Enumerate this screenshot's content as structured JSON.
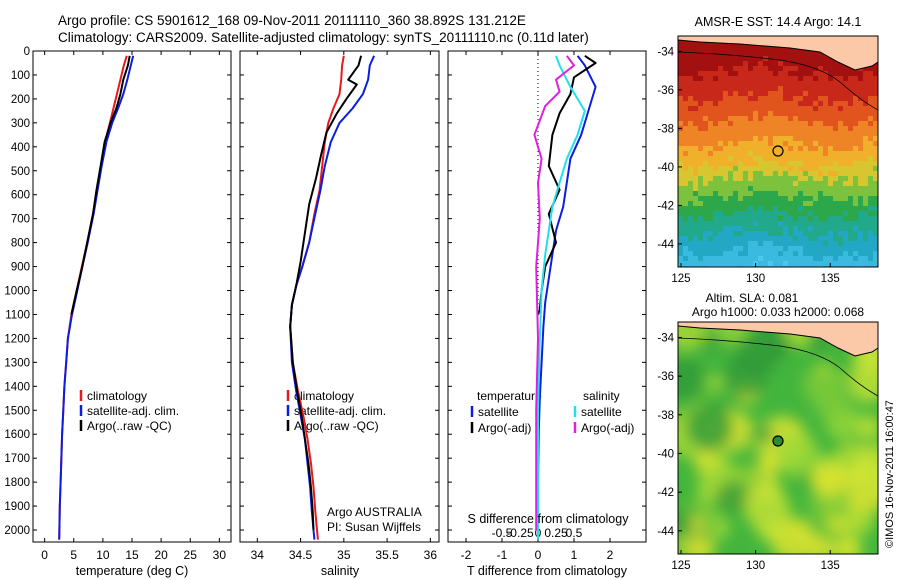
{
  "header": {
    "line1": "Argo profile: CS 5901612_168 09-Nov-2011 20111110_360 38.892S 131.212E",
    "line2": "Climatology: CARS2009. Satellite-adjusted climatology: synTS_20111110.nc (0.11d later)"
  },
  "chart_data": [
    {
      "type": "line",
      "xlabel": "temperature (deg C)",
      "xlim": [
        -2,
        32
      ],
      "xticks": [
        0,
        5,
        10,
        15,
        20,
        25,
        30
      ],
      "ylim": [
        2050,
        0
      ],
      "yticks": [
        0,
        100,
        200,
        300,
        400,
        500,
        600,
        700,
        800,
        900,
        1000,
        1100,
        1200,
        1300,
        1400,
        1500,
        1600,
        1700,
        1800,
        1900,
        2000
      ],
      "legend": [
        "climatology",
        "satellite-adj. clim.",
        "Argo(..raw -QC)"
      ],
      "legend_position": "bottom-right",
      "series": [
        {
          "name": "climatology",
          "color": "#e41a1c",
          "x": [
            14.1,
            13.6,
            13.0,
            12.4,
            11.8,
            11.2,
            10.4,
            9.7,
            9.0,
            8.3,
            7.3,
            6.2,
            5.5,
            4.6,
            4.0,
            3.7,
            3.4,
            3.2,
            3.0,
            2.8,
            2.6,
            2.5
          ],
          "y": [
            20,
            60,
            120,
            180,
            240,
            300,
            380,
            480,
            580,
            680,
            800,
            920,
            1000,
            1100,
            1200,
            1300,
            1400,
            1500,
            1600,
            1750,
            1900,
            2040
          ]
        },
        {
          "name": "satellite-adj. clim.",
          "color": "#0b1ee0",
          "x": [
            15.2,
            14.8,
            14.2,
            13.5,
            12.6,
            11.6,
            10.6,
            9.8,
            9.1,
            8.4,
            7.4,
            6.3,
            5.6,
            4.7,
            4.0,
            3.7,
            3.4,
            3.2,
            3.0,
            2.8,
            2.6,
            2.5
          ],
          "y": [
            20,
            60,
            120,
            180,
            240,
            300,
            380,
            480,
            580,
            680,
            800,
            920,
            1000,
            1100,
            1200,
            1300,
            1400,
            1500,
            1600,
            1750,
            1900,
            2040
          ]
        },
        {
          "name": "Argo(..raw -QC)",
          "color": "#000000",
          "x": [
            14.6,
            14.3,
            13.5,
            13.0,
            12.3,
            11.3,
            10.3,
            9.6,
            8.9,
            8.3,
            7.3,
            6.3,
            5.5,
            4.6
          ],
          "y": [
            20,
            60,
            120,
            180,
            240,
            300,
            380,
            480,
            580,
            680,
            800,
            920,
            1000,
            1100
          ]
        }
      ]
    },
    {
      "type": "line",
      "xlabel": "salinity",
      "xlim": [
        33.8,
        36.1
      ],
      "xticks": [
        34,
        34.5,
        35,
        35.5,
        36
      ],
      "xtick_labels": [
        "34",
        "34.5",
        "35",
        "35.5",
        "36"
      ],
      "ylim": [
        2050,
        0
      ],
      "legend": [
        "climatology",
        "satellite-adj. clim.",
        "Argo(..raw -QC)"
      ],
      "legend_position": "bottom-right",
      "annotation": [
        "Argo AUSTRALIA",
        "PI: Susan Wijffels"
      ],
      "series": [
        {
          "name": "climatology",
          "color": "#e41a1c",
          "x": [
            35.0,
            34.98,
            34.97,
            34.95,
            34.88,
            34.82,
            34.78,
            34.75,
            34.72,
            34.66,
            34.6,
            34.52,
            34.45,
            34.4,
            34.38,
            34.41,
            34.47,
            34.53,
            34.58,
            34.62,
            34.65,
            34.67,
            34.69,
            34.7
          ],
          "y": [
            20,
            60,
            120,
            180,
            240,
            300,
            380,
            480,
            580,
            680,
            800,
            900,
            980,
            1060,
            1150,
            1300,
            1420,
            1520,
            1620,
            1720,
            1820,
            1920,
            2000,
            2040
          ]
        },
        {
          "name": "satellite-adj. clim.",
          "color": "#0b1ee0",
          "x": [
            35.35,
            35.3,
            35.28,
            35.22,
            35.1,
            34.95,
            34.85,
            34.78,
            34.73,
            34.67,
            34.6,
            34.52,
            34.45,
            34.4,
            34.38,
            34.4,
            34.45,
            34.5,
            34.55,
            34.58,
            34.61,
            34.63,
            34.65,
            34.66
          ],
          "y": [
            20,
            60,
            120,
            180,
            240,
            300,
            380,
            480,
            580,
            680,
            800,
            900,
            980,
            1060,
            1150,
            1300,
            1420,
            1520,
            1620,
            1720,
            1820,
            1920,
            2000,
            2040
          ]
        },
        {
          "name": "Argo(..raw -QC)",
          "color": "#000000",
          "x": [
            35.2,
            35.17,
            35.05,
            35.15,
            35.03,
            34.92,
            34.8,
            34.74,
            34.68,
            34.6,
            34.55,
            34.5,
            34.45,
            34.4,
            34.38,
            34.41,
            34.46,
            34.51,
            34.55,
            34.59,
            34.62,
            34.64,
            34.65
          ],
          "y": [
            20,
            60,
            120,
            140,
            200,
            260,
            340,
            430,
            530,
            640,
            760,
            880,
            980,
            1060,
            1150,
            1300,
            1420,
            1520,
            1620,
            1720,
            1820,
            1920,
            2000
          ]
        }
      ]
    },
    {
      "type": "line",
      "xlabel": "T difference from climatology",
      "xlabel_top": "S difference from climatology",
      "xlim": [
        -2.5,
        3.0
      ],
      "xticks": [
        -2,
        -1,
        0,
        1,
        2
      ],
      "xtick_labels": [
        "-2",
        "-1",
        "0",
        "1",
        "2"
      ],
      "top_xticks": [
        -0.5,
        -0.25,
        0,
        0.25,
        0.5
      ],
      "top_xtick_labels": [
        "-0.5",
        "-0.25",
        "0",
        "0.25",
        "0.5"
      ],
      "ylim": [
        2050,
        0
      ],
      "legend_groups": [
        {
          "title": "temperature",
          "entries": [
            "satellite",
            "Argo(-adj)"
          ]
        },
        {
          "title": "salinity",
          "entries": [
            "satellite",
            "Argo(-adj)"
          ]
        }
      ],
      "series": [
        {
          "name": "temperature satellite",
          "color": "#0b1ee0",
          "x": [
            1.1,
            1.3,
            1.6,
            1.4,
            1.2,
            0.9,
            0.8,
            0.7,
            0.5,
            0.4,
            0.3,
            0.2,
            0.15,
            0.1,
            0.05,
            0.02,
            0.0,
            0.0
          ],
          "y": [
            20,
            60,
            150,
            250,
            350,
            450,
            550,
            650,
            750,
            850,
            950,
            1050,
            1150,
            1300,
            1450,
            1600,
            1800,
            2040
          ]
        },
        {
          "name": "temperature Argo(-adj)",
          "color": "#000000",
          "x": [
            1.3,
            1.6,
            1.0,
            0.9,
            0.6,
            0.4,
            0.3,
            0.6,
            0.3,
            0.5,
            0.2,
            0.1,
            0.05,
            0.0
          ],
          "y": [
            20,
            50,
            110,
            180,
            260,
            350,
            480,
            580,
            680,
            800,
            900,
            1000,
            1080,
            1100
          ]
        },
        {
          "name": "salinity satellite",
          "color": "#22e0e8",
          "x": [
            0.5,
            0.6,
            0.9,
            1.3,
            1.1,
            0.8,
            0.6,
            0.4,
            0.3,
            0.2,
            0.1,
            0.05,
            0.0,
            0.0
          ],
          "y": [
            20,
            60,
            150,
            250,
            350,
            450,
            550,
            650,
            750,
            850,
            1000,
            1200,
            1500,
            2040
          ]
        },
        {
          "name": "salinity Argo(-adj)",
          "color": "#e020e0",
          "x": [
            0.8,
            1.0,
            0.5,
            0.6,
            0.2,
            -0.1,
            0.1,
            0.0,
            0.05,
            -0.05,
            0.0,
            -0.05,
            -0.05
          ],
          "y": [
            20,
            60,
            120,
            170,
            230,
            350,
            450,
            550,
            700,
            900,
            1200,
            1500,
            2000
          ]
        }
      ]
    }
  ],
  "maps": {
    "sst": {
      "title": "AMSR-E SST: 14.4 Argo: 14.1",
      "lat_ticks": [
        "-34",
        "-36",
        "-38",
        "-40",
        "-42",
        "-44"
      ],
      "lon_ticks": [
        "125",
        "130",
        "135"
      ]
    },
    "sla": {
      "title_line1": "Altim. SLA: 0.081",
      "title_line2": "Argo h1000: 0.033 h2000: 0.068",
      "lat_ticks": [
        "-34",
        "-36",
        "-38",
        "-40",
        "-42",
        "-44"
      ],
      "lon_ticks": [
        "125",
        "130",
        "135"
      ],
      "credit": "©IMOS 16-Nov-2011 16:00:47"
    }
  }
}
